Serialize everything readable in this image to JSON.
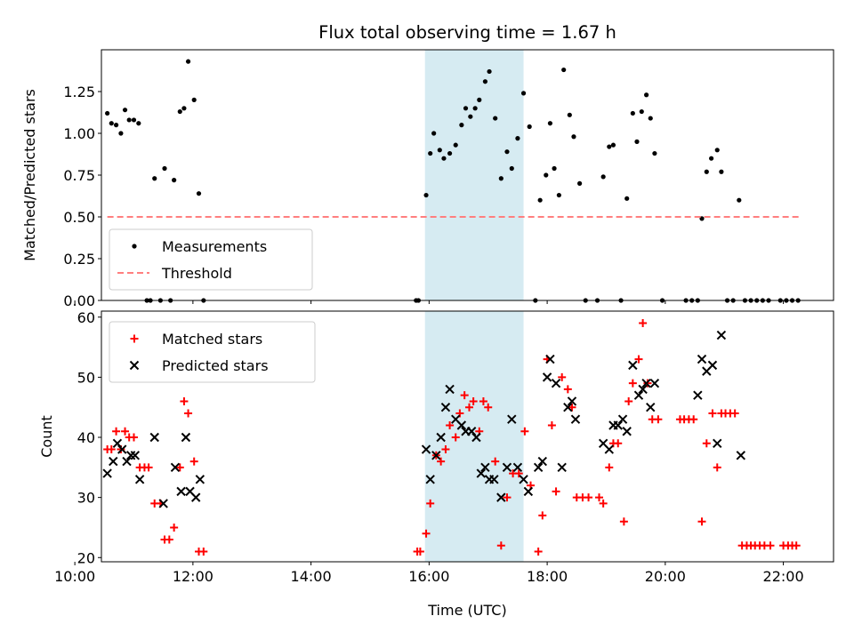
{
  "chart_data": [
    {
      "type": "scatter",
      "title": "Flux total observing time = 1.67 h",
      "xlabel": "",
      "ylabel": "Matched/Predicted stars",
      "xlim": [
        10.45,
        22.85
      ],
      "ylim": [
        0,
        1.5
      ],
      "yticks": [
        0.0,
        0.25,
        0.5,
        0.75,
        1.0,
        1.25
      ],
      "ytick_labels": [
        "0.00",
        "0.25",
        "0.50",
        "0.75",
        "1.00",
        "1.25"
      ],
      "xticks": [
        10,
        12,
        14,
        16,
        18,
        20,
        22
      ],
      "highlight_span": [
        15.93,
        17.6
      ],
      "highlight_color": "#add8e6",
      "legend_position": "lower-left",
      "series": [
        {
          "name": "Measurements",
          "marker": "dot",
          "color": "#000000",
          "points": [
            [
              10.55,
              1.12
            ],
            [
              10.62,
              1.06
            ],
            [
              10.7,
              1.05
            ],
            [
              10.78,
              1.0
            ],
            [
              10.85,
              1.14
            ],
            [
              10.92,
              1.08
            ],
            [
              11.0,
              1.08
            ],
            [
              11.08,
              1.06
            ],
            [
              11.22,
              0.0
            ],
            [
              11.28,
              0.0
            ],
            [
              11.35,
              0.73
            ],
            [
              11.45,
              0.0
            ],
            [
              11.52,
              0.79
            ],
            [
              11.62,
              0.0
            ],
            [
              11.68,
              0.72
            ],
            [
              11.78,
              1.13
            ],
            [
              11.85,
              1.15
            ],
            [
              11.92,
              1.43
            ],
            [
              12.02,
              1.2
            ],
            [
              12.1,
              0.64
            ],
            [
              12.18,
              0.0
            ],
            [
              15.78,
              0.0
            ],
            [
              15.82,
              0.0
            ],
            [
              15.95,
              0.63
            ],
            [
              16.02,
              0.88
            ],
            [
              16.08,
              1.0
            ],
            [
              16.18,
              0.9
            ],
            [
              16.25,
              0.85
            ],
            [
              16.35,
              0.88
            ],
            [
              16.45,
              0.93
            ],
            [
              16.55,
              1.05
            ],
            [
              16.62,
              1.15
            ],
            [
              16.7,
              1.1
            ],
            [
              16.78,
              1.15
            ],
            [
              16.85,
              1.2
            ],
            [
              16.95,
              1.31
            ],
            [
              17.02,
              1.37
            ],
            [
              17.12,
              1.09
            ],
            [
              17.22,
              0.73
            ],
            [
              17.32,
              0.89
            ],
            [
              17.4,
              0.79
            ],
            [
              17.5,
              0.97
            ],
            [
              17.6,
              1.24
            ],
            [
              17.7,
              1.04
            ],
            [
              17.8,
              0.0
            ],
            [
              17.88,
              0.6
            ],
            [
              17.98,
              0.75
            ],
            [
              18.05,
              1.06
            ],
            [
              18.12,
              0.79
            ],
            [
              18.2,
              0.63
            ],
            [
              18.28,
              1.38
            ],
            [
              18.38,
              1.11
            ],
            [
              18.45,
              0.98
            ],
            [
              18.55,
              0.7
            ],
            [
              18.65,
              0.0
            ],
            [
              18.85,
              0.0
            ],
            [
              18.95,
              0.74
            ],
            [
              19.05,
              0.92
            ],
            [
              19.12,
              0.93
            ],
            [
              19.25,
              0.0
            ],
            [
              19.35,
              0.61
            ],
            [
              19.45,
              1.12
            ],
            [
              19.52,
              0.95
            ],
            [
              19.6,
              1.13
            ],
            [
              19.68,
              1.23
            ],
            [
              19.75,
              1.09
            ],
            [
              19.82,
              0.88
            ],
            [
              19.95,
              0.0
            ],
            [
              20.35,
              0.0
            ],
            [
              20.45,
              0.0
            ],
            [
              20.55,
              0.0
            ],
            [
              20.62,
              0.49
            ],
            [
              20.7,
              0.77
            ],
            [
              20.78,
              0.85
            ],
            [
              20.88,
              0.9
            ],
            [
              20.95,
              0.77
            ],
            [
              21.05,
              0.0
            ],
            [
              21.15,
              0.0
            ],
            [
              21.25,
              0.6
            ],
            [
              21.35,
              0.0
            ],
            [
              21.45,
              0.0
            ],
            [
              21.55,
              0.0
            ],
            [
              21.65,
              0.0
            ],
            [
              21.75,
              0.0
            ],
            [
              21.95,
              0.0
            ],
            [
              22.05,
              0.0
            ],
            [
              22.15,
              0.0
            ],
            [
              22.25,
              0.0
            ]
          ]
        },
        {
          "name": "Threshold",
          "line": "dashed",
          "color": "#ff7f7f",
          "points": [
            [
              10.55,
              0.5
            ],
            [
              22.3,
              0.5
            ]
          ]
        }
      ]
    },
    {
      "type": "scatter",
      "title": "",
      "xlabel": "Time (UTC)",
      "ylabel": "Count",
      "xlim": [
        10.45,
        22.85
      ],
      "ylim": [
        19.3,
        61
      ],
      "yticks": [
        20,
        30,
        40,
        50,
        60
      ],
      "ytick_labels": [
        "20",
        "30",
        "40",
        "50",
        "60"
      ],
      "xticks": [
        10,
        12,
        14,
        16,
        18,
        20,
        22
      ],
      "xtick_labels": [
        "10:00",
        "12:00",
        "14:00",
        "16:00",
        "18:00",
        "20:00",
        "22:00"
      ],
      "highlight_span": [
        15.93,
        17.6
      ],
      "highlight_color": "#add8e6",
      "legend_position": "upper-left",
      "series": [
        {
          "name": "Matched stars",
          "marker": "plus",
          "color": "#ff0000",
          "points": [
            [
              10.55,
              38
            ],
            [
              10.62,
              38
            ],
            [
              10.7,
              41
            ],
            [
              10.78,
              38
            ],
            [
              10.85,
              41
            ],
            [
              10.92,
              40
            ],
            [
              11.0,
              40
            ],
            [
              11.1,
              35
            ],
            [
              11.18,
              35
            ],
            [
              11.25,
              35
            ],
            [
              11.35,
              29
            ],
            [
              11.45,
              29
            ],
            [
              11.52,
              23
            ],
            [
              11.6,
              23
            ],
            [
              11.68,
              25
            ],
            [
              11.78,
              35
            ],
            [
              11.85,
              46
            ],
            [
              11.92,
              44
            ],
            [
              12.02,
              36
            ],
            [
              12.1,
              21
            ],
            [
              12.18,
              21
            ],
            [
              15.8,
              21
            ],
            [
              15.85,
              21
            ],
            [
              15.95,
              24
            ],
            [
              16.02,
              29
            ],
            [
              16.12,
              37
            ],
            [
              16.2,
              36
            ],
            [
              16.28,
              38
            ],
            [
              16.35,
              42
            ],
            [
              16.45,
              40
            ],
            [
              16.52,
              44
            ],
            [
              16.6,
              47
            ],
            [
              16.68,
              45
            ],
            [
              16.75,
              46
            ],
            [
              16.85,
              41
            ],
            [
              16.92,
              46
            ],
            [
              17.0,
              45
            ],
            [
              17.12,
              36
            ],
            [
              17.22,
              22
            ],
            [
              17.32,
              30
            ],
            [
              17.42,
              34
            ],
            [
              17.52,
              34
            ],
            [
              17.62,
              41
            ],
            [
              17.72,
              32
            ],
            [
              17.85,
              21
            ],
            [
              17.92,
              27
            ],
            [
              18.0,
              53
            ],
            [
              18.08,
              42
            ],
            [
              18.15,
              31
            ],
            [
              18.25,
              50
            ],
            [
              18.35,
              48
            ],
            [
              18.42,
              45
            ],
            [
              18.5,
              30
            ],
            [
              18.6,
              30
            ],
            [
              18.7,
              30
            ],
            [
              18.88,
              30
            ],
            [
              18.95,
              29
            ],
            [
              19.05,
              35
            ],
            [
              19.12,
              39
            ],
            [
              19.2,
              39
            ],
            [
              19.3,
              26
            ],
            [
              19.38,
              46
            ],
            [
              19.45,
              49
            ],
            [
              19.55,
              53
            ],
            [
              19.62,
              59
            ],
            [
              19.7,
              49
            ],
            [
              19.78,
              43
            ],
            [
              19.88,
              43
            ],
            [
              20.25,
              43
            ],
            [
              20.32,
              43
            ],
            [
              20.4,
              43
            ],
            [
              20.48,
              43
            ],
            [
              20.62,
              26
            ],
            [
              20.7,
              39
            ],
            [
              20.8,
              44
            ],
            [
              20.88,
              35
            ],
            [
              20.95,
              44
            ],
            [
              21.02,
              44
            ],
            [
              21.1,
              44
            ],
            [
              21.18,
              44
            ],
            [
              21.3,
              22
            ],
            [
              21.38,
              22
            ],
            [
              21.45,
              22
            ],
            [
              21.52,
              22
            ],
            [
              21.6,
              22
            ],
            [
              21.68,
              22
            ],
            [
              21.78,
              22
            ],
            [
              22.0,
              22
            ],
            [
              22.08,
              22
            ],
            [
              22.15,
              22
            ],
            [
              22.22,
              22
            ]
          ]
        },
        {
          "name": "Predicted stars",
          "marker": "x",
          "color": "#000000",
          "points": [
            [
              10.55,
              34
            ],
            [
              10.65,
              36
            ],
            [
              10.72,
              39
            ],
            [
              10.8,
              38
            ],
            [
              10.88,
              36
            ],
            [
              10.95,
              37
            ],
            [
              11.02,
              37
            ],
            [
              11.1,
              33
            ],
            [
              11.35,
              40
            ],
            [
              11.5,
              29
            ],
            [
              11.7,
              35
            ],
            [
              11.8,
              31
            ],
            [
              11.88,
              40
            ],
            [
              11.95,
              31
            ],
            [
              12.05,
              30
            ],
            [
              12.12,
              33
            ],
            [
              15.95,
              38
            ],
            [
              16.02,
              33
            ],
            [
              16.12,
              37
            ],
            [
              16.2,
              40
            ],
            [
              16.28,
              45
            ],
            [
              16.35,
              48
            ],
            [
              16.45,
              43
            ],
            [
              16.55,
              42
            ],
            [
              16.62,
              41
            ],
            [
              16.72,
              41
            ],
            [
              16.8,
              40
            ],
            [
              16.88,
              34
            ],
            [
              16.95,
              35
            ],
            [
              17.02,
              33
            ],
            [
              17.1,
              33
            ],
            [
              17.22,
              30
            ],
            [
              17.32,
              35
            ],
            [
              17.4,
              43
            ],
            [
              17.5,
              35
            ],
            [
              17.6,
              33
            ],
            [
              17.68,
              31
            ],
            [
              17.85,
              35
            ],
            [
              17.92,
              36
            ],
            [
              18.0,
              50
            ],
            [
              18.05,
              53
            ],
            [
              18.15,
              49
            ],
            [
              18.25,
              35
            ],
            [
              18.35,
              45
            ],
            [
              18.42,
              46
            ],
            [
              18.48,
              43
            ],
            [
              18.95,
              39
            ],
            [
              19.05,
              38
            ],
            [
              19.12,
              42
            ],
            [
              19.2,
              42
            ],
            [
              19.28,
              43
            ],
            [
              19.35,
              41
            ],
            [
              19.45,
              52
            ],
            [
              19.55,
              47
            ],
            [
              19.62,
              48
            ],
            [
              19.68,
              49
            ],
            [
              19.75,
              45
            ],
            [
              19.82,
              49
            ],
            [
              20.55,
              47
            ],
            [
              20.62,
              53
            ],
            [
              20.7,
              51
            ],
            [
              20.8,
              52
            ],
            [
              20.88,
              39
            ],
            [
              20.95,
              57
            ],
            [
              21.28,
              37
            ]
          ]
        }
      ]
    }
  ]
}
